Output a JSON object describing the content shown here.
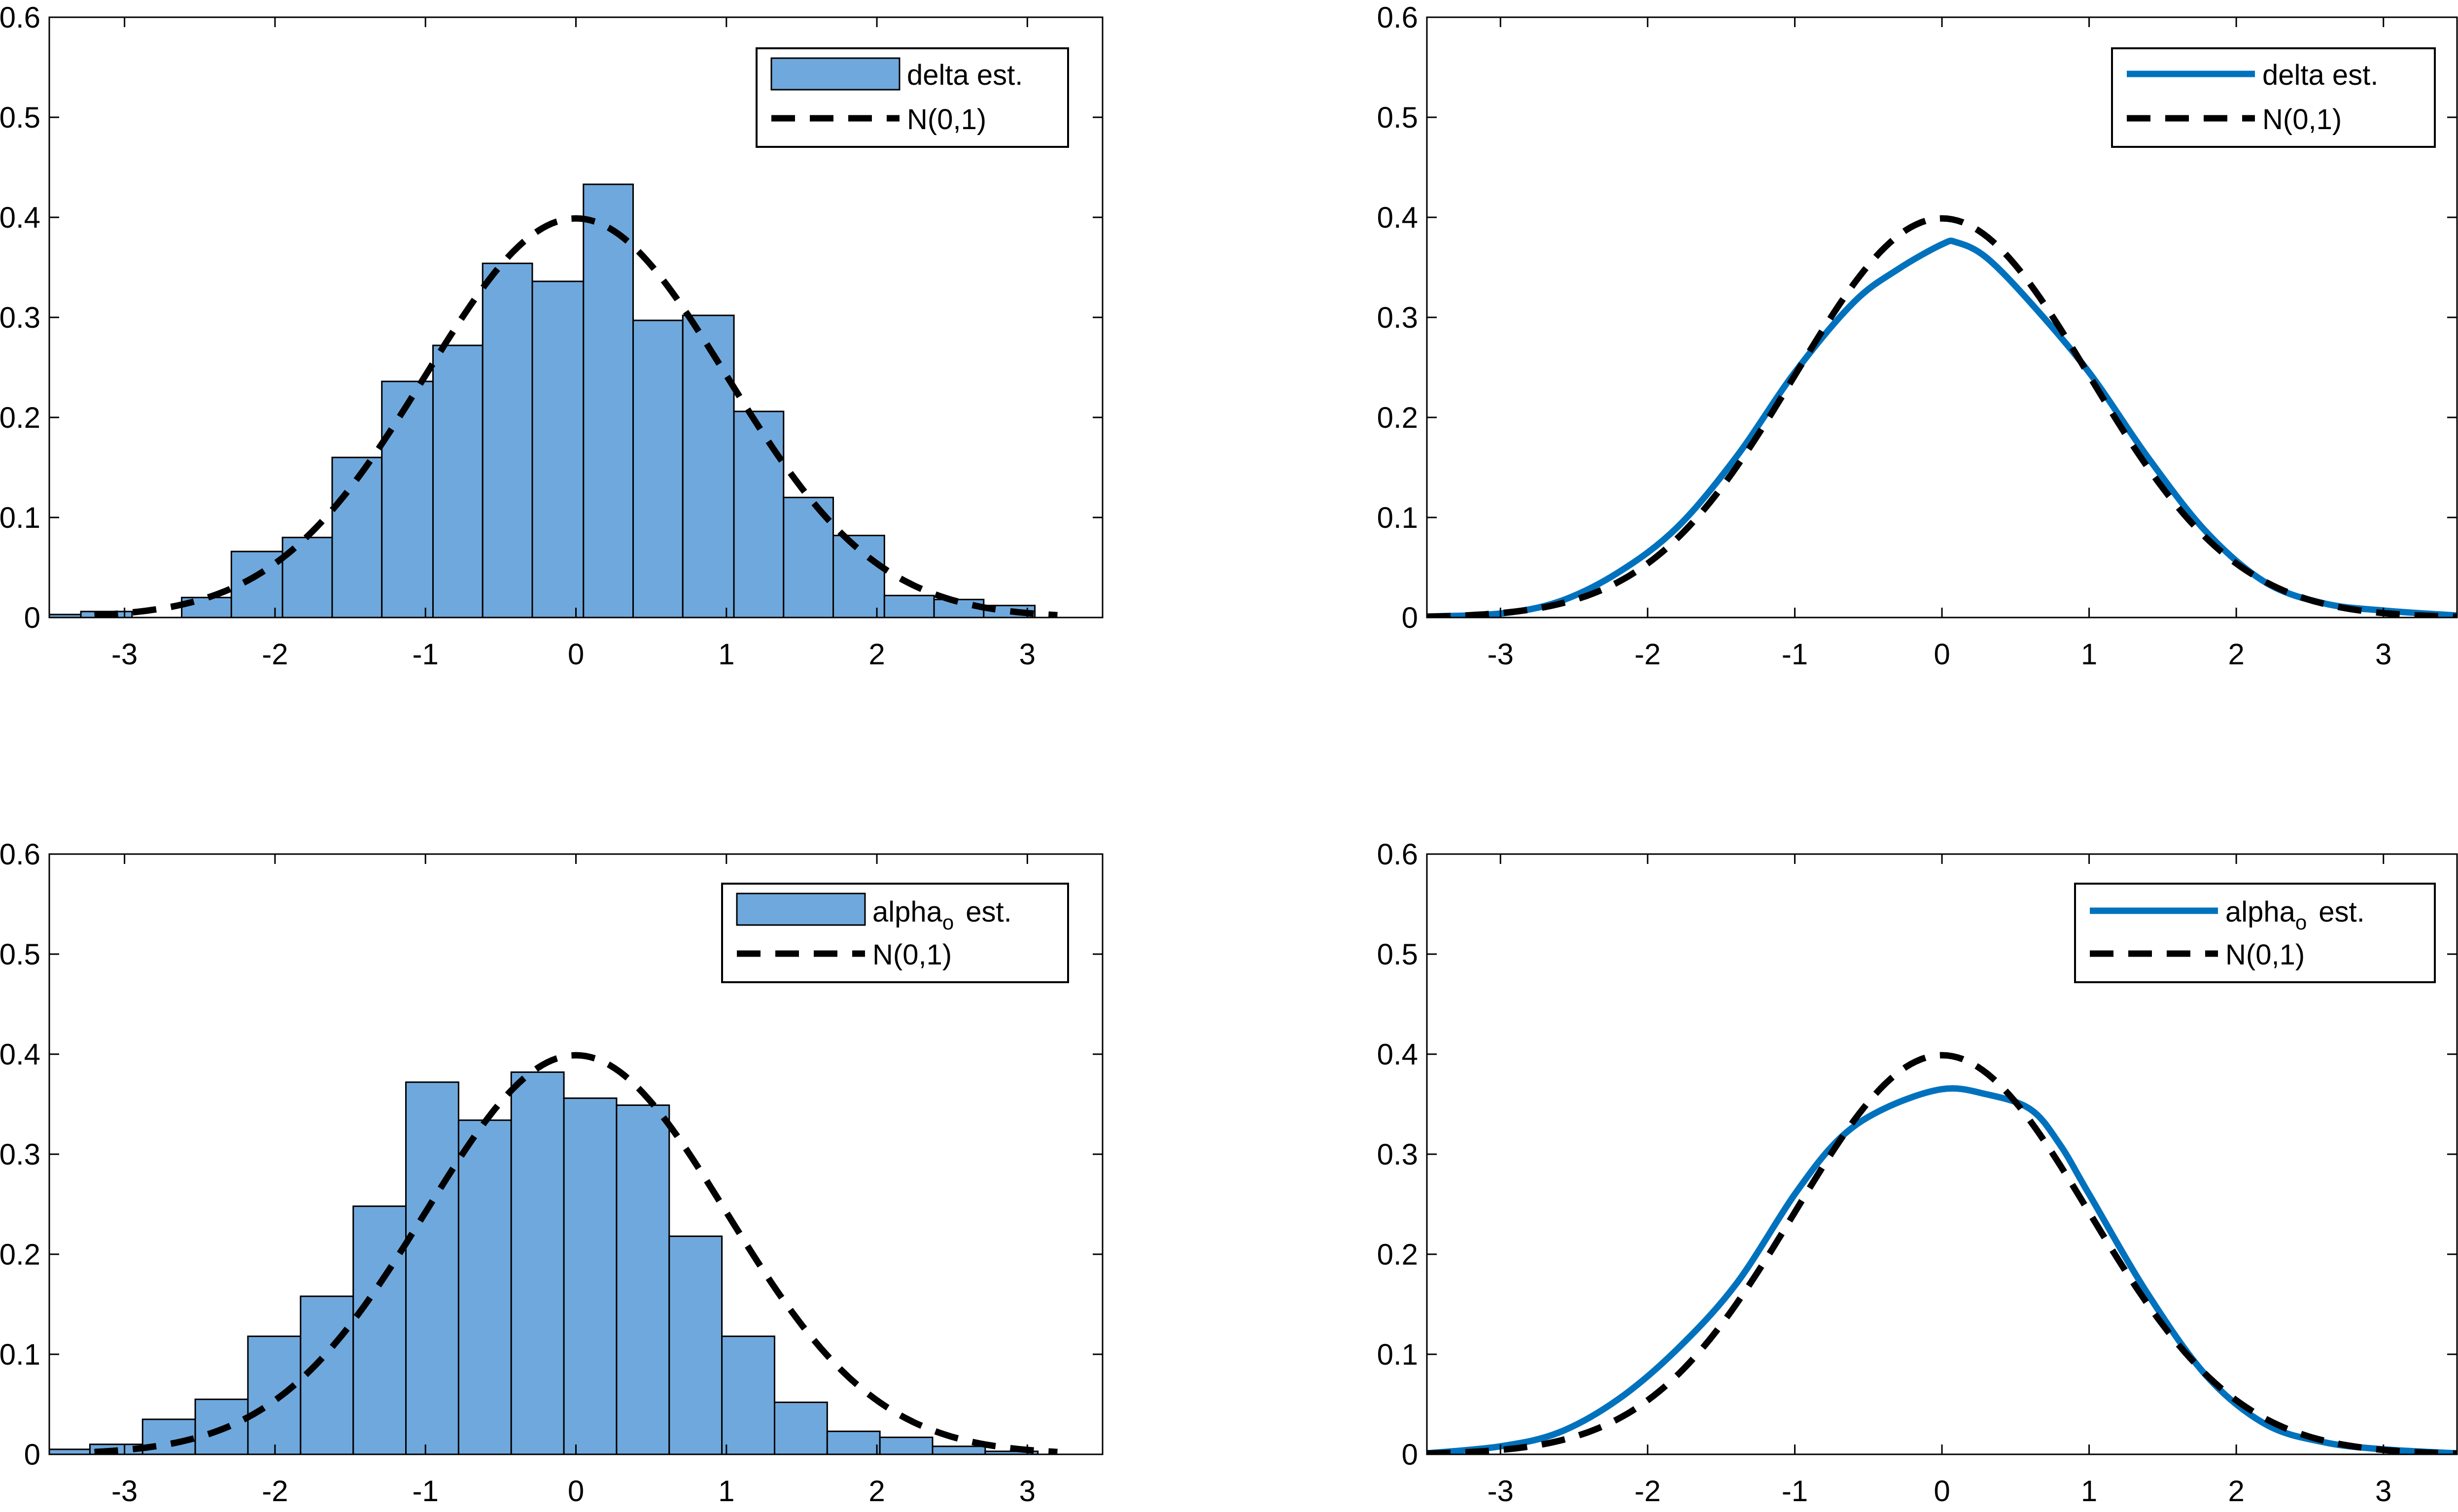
{
  "figure": {
    "colors": {
      "hist_fill": "#6FA8DC",
      "hist_edge": "#000000",
      "density_line": "#0072BD",
      "normal_line": "#000000",
      "axis": "#000000",
      "background": "#FFFFFF"
    }
  },
  "chart_data": [
    {
      "id": "top-left",
      "type": "bar",
      "subtype": "histogram",
      "title": "",
      "xlabel": "",
      "ylabel": "",
      "xlim": [
        -3.5,
        3.5
      ],
      "ylim": [
        0,
        0.6
      ],
      "xticks": [
        -3,
        -2,
        -1,
        0,
        1,
        2,
        3
      ],
      "xtick_labels": [
        "-3",
        "-2",
        "-1",
        "0",
        "1",
        "2",
        "3"
      ],
      "yticks": [
        0,
        0.1,
        0.2,
        0.3,
        0.4,
        0.5,
        0.6
      ],
      "ytick_labels": [
        "0",
        "0.1",
        "0.2",
        "0.3",
        "0.4",
        "0.5",
        "0.6"
      ],
      "bin_edges": [
        -3.62,
        -3.29,
        -2.95,
        -2.62,
        -2.29,
        -1.95,
        -1.62,
        -1.29,
        -0.95,
        -0.62,
        -0.29,
        0.05,
        0.38,
        0.71,
        1.05,
        1.38,
        1.71,
        2.05,
        2.38,
        2.71,
        3.05
      ],
      "values": [
        0.003,
        0.006,
        0.0,
        0.02,
        0.066,
        0.08,
        0.16,
        0.236,
        0.272,
        0.354,
        0.336,
        0.433,
        0.297,
        0.302,
        0.206,
        0.12,
        0.082,
        0.022,
        0.018,
        0.012
      ],
      "overlay": {
        "name": "N(0,1)",
        "mean": 0,
        "sd": 1,
        "x_range": [
          -3.2,
          3.2
        ],
        "style": "dashed"
      },
      "legend": {
        "position": "top-right",
        "entries": [
          "delta est.",
          "N(0,1)"
        ]
      }
    },
    {
      "id": "top-right",
      "type": "line",
      "title": "",
      "xlabel": "",
      "ylabel": "",
      "xlim": [
        -3.5,
        3.5
      ],
      "ylim": [
        0,
        0.6
      ],
      "xticks": [
        -3,
        -2,
        -1,
        0,
        1,
        2,
        3
      ],
      "xtick_labels": [
        "-3",
        "-2",
        "-1",
        "0",
        "1",
        "2",
        "3"
      ],
      "yticks": [
        0,
        0.1,
        0.2,
        0.3,
        0.4,
        0.5,
        0.6
      ],
      "ytick_labels": [
        "0",
        "0.1",
        "0.2",
        "0.3",
        "0.4",
        "0.5",
        "0.6"
      ],
      "series": [
        {
          "name": "delta est.",
          "x": [
            -3.5,
            -3.0,
            -2.6,
            -2.2,
            -1.8,
            -1.4,
            -1.0,
            -0.6,
            -0.3,
            0.0,
            0.1,
            0.3,
            0.6,
            1.0,
            1.4,
            1.8,
            2.2,
            2.6,
            3.0,
            3.5
          ],
          "values": [
            0.001,
            0.004,
            0.016,
            0.045,
            0.09,
            0.16,
            0.245,
            0.315,
            0.348,
            0.373,
            0.375,
            0.36,
            0.315,
            0.245,
            0.16,
            0.085,
            0.035,
            0.014,
            0.007,
            0.002
          ]
        }
      ],
      "overlay": {
        "name": "N(0,1)",
        "mean": 0,
        "sd": 1,
        "x_range": [
          -3.5,
          3.5
        ],
        "style": "dashed"
      },
      "legend": {
        "position": "top-right",
        "entries": [
          "delta est.",
          "N(0,1)"
        ]
      }
    },
    {
      "id": "bottom-left",
      "type": "bar",
      "subtype": "histogram",
      "title": "",
      "xlabel": "",
      "ylabel": "",
      "xlim": [
        -3.5,
        3.5
      ],
      "ylim": [
        0,
        0.6
      ],
      "xticks": [
        -3,
        -2,
        -1,
        0,
        1,
        2,
        3
      ],
      "xtick_labels": [
        "-3",
        "-2",
        "-1",
        "0",
        "1",
        "2",
        "3"
      ],
      "yticks": [
        0,
        0.1,
        0.2,
        0.3,
        0.4,
        0.5,
        0.6
      ],
      "ytick_labels": [
        "0",
        "0.1",
        "0.2",
        "0.3",
        "0.4",
        "0.5",
        "0.6"
      ],
      "bin_edges": [
        -3.58,
        -3.23,
        -2.88,
        -2.53,
        -2.18,
        -1.83,
        -1.48,
        -1.13,
        -0.78,
        -0.43,
        -0.08,
        0.27,
        0.62,
        0.97,
        1.32,
        1.67,
        2.02,
        2.37,
        2.72,
        3.07
      ],
      "values": [
        0.005,
        0.01,
        0.035,
        0.055,
        0.118,
        0.158,
        0.248,
        0.372,
        0.334,
        0.382,
        0.356,
        0.349,
        0.218,
        0.118,
        0.052,
        0.023,
        0.017,
        0.008,
        0.003
      ],
      "overlay": {
        "name": "N(0,1)",
        "mean": 0,
        "sd": 1,
        "x_range": [
          -3.2,
          3.2
        ],
        "style": "dashed"
      },
      "legend": {
        "position": "top-right",
        "entries": [
          "alpha",
          "N(0,1)"
        ],
        "subscript": "o",
        "suffix": "est."
      }
    },
    {
      "id": "bottom-right",
      "type": "line",
      "title": "",
      "xlabel": "",
      "ylabel": "",
      "xlim": [
        -3.5,
        3.5
      ],
      "ylim": [
        0,
        0.6
      ],
      "xticks": [
        -3,
        -2,
        -1,
        0,
        1,
        2,
        3
      ],
      "xtick_labels": [
        "-3",
        "-2",
        "-1",
        "0",
        "1",
        "2",
        "3"
      ],
      "yticks": [
        0,
        0.1,
        0.2,
        0.3,
        0.4,
        0.5,
        0.6
      ],
      "ytick_labels": [
        "0",
        "0.1",
        "0.2",
        "0.3",
        "0.4",
        "0.5",
        "0.6"
      ],
      "series": [
        {
          "name": "alpha_o est.",
          "x": [
            -3.5,
            -3.0,
            -2.6,
            -2.2,
            -1.8,
            -1.4,
            -1.0,
            -0.7,
            -0.4,
            0.0,
            0.3,
            0.6,
            0.8,
            1.0,
            1.4,
            1.8,
            2.2,
            2.6,
            3.0,
            3.5
          ],
          "values": [
            0.001,
            0.008,
            0.022,
            0.055,
            0.105,
            0.17,
            0.26,
            0.315,
            0.345,
            0.365,
            0.36,
            0.345,
            0.31,
            0.26,
            0.16,
            0.078,
            0.03,
            0.012,
            0.005,
            0.001
          ]
        }
      ],
      "overlay": {
        "name": "N(0,1)",
        "mean": 0,
        "sd": 1,
        "x_range": [
          -3.5,
          3.5
        ],
        "style": "dashed"
      },
      "legend": {
        "position": "top-right",
        "entries": [
          "alpha",
          "N(0,1)"
        ],
        "subscript": "o",
        "suffix": "est."
      }
    }
  ]
}
